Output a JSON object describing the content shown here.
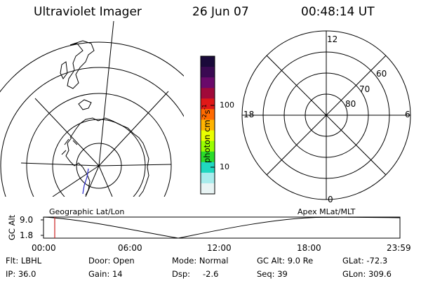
{
  "header": {
    "instrument": "Ultraviolet Imager",
    "date": "26 Jun 07",
    "time": "00:48:14 UT"
  },
  "colorbar": {
    "unit_label": "photon cm",
    "unit_exp1": "-2",
    "unit_mid": "s",
    "unit_exp2": "-1",
    "tick_100": "100",
    "tick_10": "10",
    "colors_top_to_bottom": [
      "#1a0a3a",
      "#3a0a52",
      "#6a0a6a",
      "#a00a3a",
      "#e01818",
      "#ff6a00",
      "#ffb400",
      "#eaff00",
      "#9aff00",
      "#2add2a",
      "#20d8c0",
      "#a8ecec",
      "#e8f4f4"
    ]
  },
  "geo_map": {
    "label": "Geographic Lat/Lon"
  },
  "polar_plot": {
    "label": "Apex MLat/MLT",
    "mlt_12": "12",
    "mlt_18": "18",
    "mlt_6": "6",
    "mlt_0": "0",
    "mlat_80": "80",
    "mlat_70": "70",
    "mlat_60": "60"
  },
  "altitude_plot": {
    "ylabel": "GC Alt",
    "y_tick_top": "9.0",
    "y_tick_bottom": "1.8",
    "x_ticks": [
      "00:00",
      "06:00",
      "12:00",
      "18:00",
      "23:59"
    ]
  },
  "info": {
    "flt": "Flt: LBHL",
    "ip": "IP: 36.0",
    "door": "Door: Open",
    "gain": "Gain: 14",
    "mode": "Mode: Normal",
    "dsp_label": "Dsp:",
    "dsp_value": "-2.6",
    "gc_alt": "GC Alt: 9.0 Re",
    "seq": "Seq: 39",
    "glat": "GLat: -72.3",
    "glon": "GLon: 309.6"
  }
}
